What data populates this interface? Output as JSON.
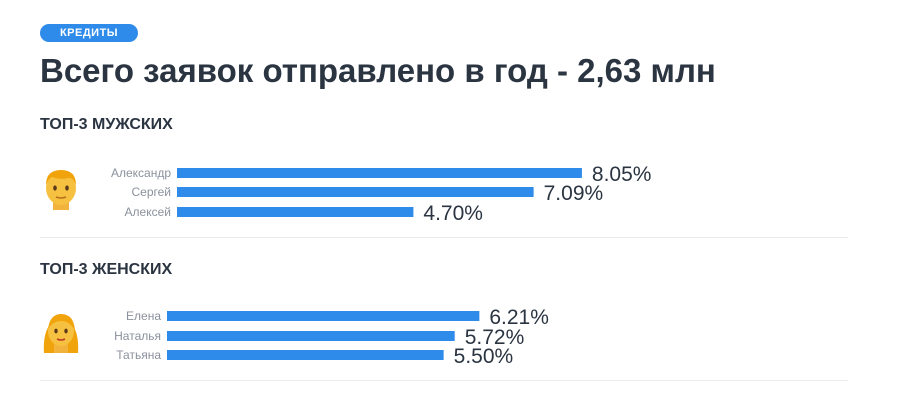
{
  "badge": "КРЕДИТЫ",
  "title": "Всего заявок отправлено в год - 2,63 млн",
  "colors": {
    "accent": "#2e8bea",
    "text": "#2b3441",
    "muted": "#8a919c"
  },
  "chart_data": [
    {
      "type": "bar",
      "orientation": "horizontal",
      "title": "ТОП-3 МУЖСКИХ",
      "icon": "man-emoji-icon",
      "categories": [
        "Александр",
        "Сергей",
        "Алексей"
      ],
      "values": [
        8.05,
        7.09,
        4.7
      ],
      "labels": [
        "8.05%",
        "7.09%",
        "4.70%"
      ],
      "grid": false
    },
    {
      "type": "bar",
      "orientation": "horizontal",
      "title": "ТОП-3 ЖЕНСКИХ",
      "icon": "woman-emoji-icon",
      "categories": [
        "Елена",
        "Наталья",
        "Татьяна"
      ],
      "values": [
        6.21,
        5.72,
        5.5
      ],
      "labels": [
        "6.21%",
        "5.72%",
        "5.50%"
      ],
      "grid": false
    }
  ]
}
